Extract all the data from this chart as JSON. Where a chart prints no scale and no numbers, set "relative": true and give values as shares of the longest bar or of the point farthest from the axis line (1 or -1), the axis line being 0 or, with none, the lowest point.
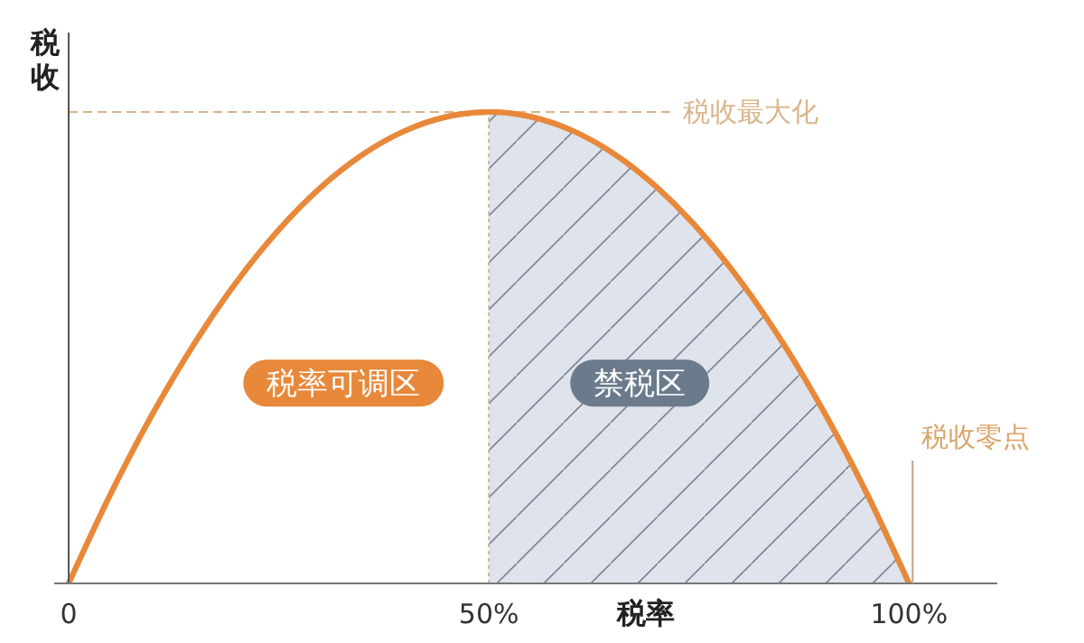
{
  "chart_data": {
    "type": "line",
    "relative": true,
    "xlabel": "税率",
    "ylabel": "税收",
    "x": [
      0,
      5,
      10,
      15,
      20,
      25,
      30,
      35,
      40,
      45,
      50,
      55,
      60,
      65,
      70,
      75,
      80,
      85,
      90,
      95,
      100
    ],
    "xlim": [
      0,
      110.5
    ],
    "xticks": [
      {
        "value": 0,
        "label": "0"
      },
      {
        "value": 50,
        "label": "50%"
      },
      {
        "value": 100,
        "label": "100%"
      }
    ],
    "series": [
      {
        "color": "#e8893a",
        "values": [
          0,
          0.19,
          0.36,
          0.51,
          0.64,
          0.75,
          0.84,
          0.91,
          0.96,
          0.99,
          1,
          0.99,
          0.96,
          0.91,
          0.84,
          0.75,
          0.64,
          0.51,
          0.36,
          0.19,
          0
        ]
      },
      {
        "type": "area",
        "color": "#dfe3ec",
        "x": [
          50,
          55,
          60,
          65,
          70,
          75,
          80,
          85,
          90,
          95,
          100
        ],
        "values": [
          1,
          0.99,
          0.96,
          0.91,
          0.84,
          0.75,
          0.64,
          0.51,
          0.36,
          0.19,
          0
        ]
      }
    ],
    "ref_lines": [
      {
        "axis": "y",
        "value": 1,
        "label": "税收最大化",
        "color": "#d9b48a",
        "line_style": "dashed"
      },
      {
        "axis": "x",
        "value": 50,
        "label": null,
        "color": "#c9b69a",
        "line_style": "dotted"
      }
    ],
    "annotations": [
      "税率可调区",
      "禁税区",
      {
        "text": "税收零点",
        "x": 100,
        "y": 0
      }
    ],
    "line_style": "solid"
  }
}
